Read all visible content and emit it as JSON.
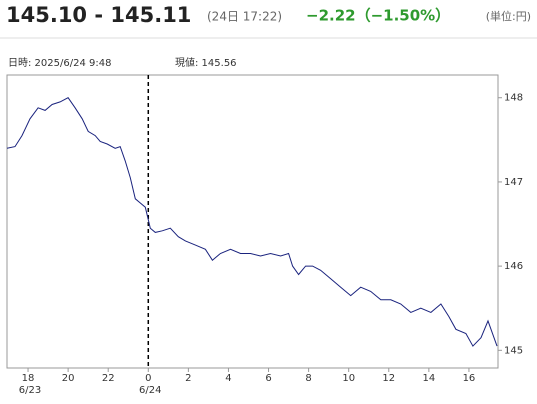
{
  "header": {
    "price": "145.10 - 145.11",
    "time": "(24日 17:22)",
    "change": "−2.22（−1.50%）",
    "unit": "(単位:円)"
  },
  "chart_data": {
    "type": "line",
    "info_date": "日時: 2025/6/24  9:48",
    "info_value": "現値: 145.56",
    "x": [
      16.95,
      17.35,
      17.7,
      18.1,
      18.5,
      18.85,
      19.2,
      19.6,
      20.0,
      20.35,
      20.7,
      21.0,
      21.35,
      21.6,
      21.95,
      22.35,
      22.6,
      22.85,
      23.1,
      23.35,
      23.6,
      23.85,
      24.1,
      24.35,
      24.7,
      25.1,
      25.5,
      25.85,
      26.35,
      26.85,
      27.2,
      27.6,
      28.1,
      28.6,
      29.1,
      29.6,
      30.1,
      30.6,
      31.0,
      31.2,
      31.5,
      31.85,
      32.2,
      32.6,
      33.1,
      33.6,
      34.1,
      34.6,
      35.1,
      35.6,
      36.1,
      36.6,
      37.1,
      37.6,
      38.1,
      38.6,
      39.0,
      39.35,
      39.85,
      40.2,
      40.6,
      40.95,
      41.25,
      41.4
    ],
    "series": [
      {
        "color": "#1a237e",
        "values": [
          147.4,
          147.42,
          147.55,
          147.75,
          147.88,
          147.85,
          147.92,
          147.95,
          148.0,
          147.88,
          147.75,
          147.6,
          147.55,
          147.48,
          147.45,
          147.4,
          147.42,
          147.25,
          147.05,
          146.8,
          146.75,
          146.7,
          146.45,
          146.4,
          146.42,
          146.45,
          146.35,
          146.3,
          146.25,
          146.2,
          146.07,
          146.15,
          146.2,
          146.15,
          146.15,
          146.12,
          146.15,
          146.12,
          146.15,
          146.0,
          145.9,
          146.0,
          146.0,
          145.95,
          145.85,
          145.75,
          145.65,
          145.75,
          145.7,
          145.6,
          145.6,
          145.55,
          145.45,
          145.5,
          145.45,
          145.55,
          145.4,
          145.25,
          145.2,
          145.05,
          145.15,
          145.35,
          145.15,
          145.05
        ]
      }
    ],
    "xlim": [
      16.95,
      41.45
    ],
    "xticks": [
      18,
      20,
      22,
      {
        "value": 24,
        "label": "0"
      },
      {
        "value": 26,
        "label": "2"
      },
      {
        "value": 28,
        "label": "4"
      },
      {
        "value": 30,
        "label": "6"
      },
      {
        "value": 32,
        "label": "8"
      },
      {
        "value": 34,
        "label": "10"
      },
      {
        "value": 36,
        "label": "12"
      },
      {
        "value": 38,
        "label": "14"
      },
      {
        "value": 40,
        "label": "16"
      }
    ],
    "x_date_labels": [
      {
        "value": 18,
        "label": "6/23"
      },
      {
        "value": 24,
        "label": "6/24"
      }
    ],
    "divider_x": 24,
    "ylim": [
      144.79,
      148.27
    ],
    "yticks": [
      145,
      146,
      147,
      148
    ]
  }
}
